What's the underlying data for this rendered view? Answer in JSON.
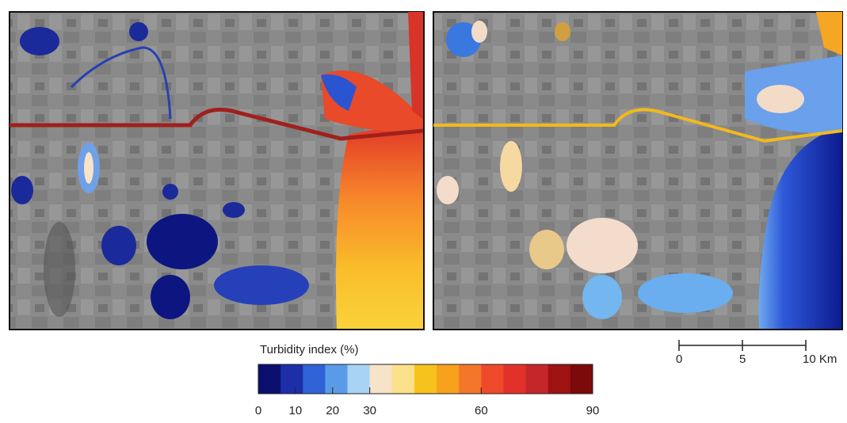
{
  "colorbar": {
    "title": "Turbidity index (%)",
    "lim": [
      0,
      90
    ],
    "ticks": [
      0,
      10,
      20,
      30,
      60,
      90
    ],
    "colors": [
      "#0a0f6e",
      "#1c2ea8",
      "#2f62d6",
      "#5a9be8",
      "#a9d3f5",
      "#f6e3c8",
      "#fbe08a",
      "#f8c21c",
      "#f7a11c",
      "#f4762a",
      "#ef4a2c",
      "#e2312a",
      "#c4262a",
      "#9e1212",
      "#7c0a0a"
    ]
  },
  "scale_bar": {
    "lim": [
      0,
      10
    ],
    "ticks": [
      0,
      5,
      {
        "value": 10,
        "label": "10 Km"
      }
    ]
  }
}
